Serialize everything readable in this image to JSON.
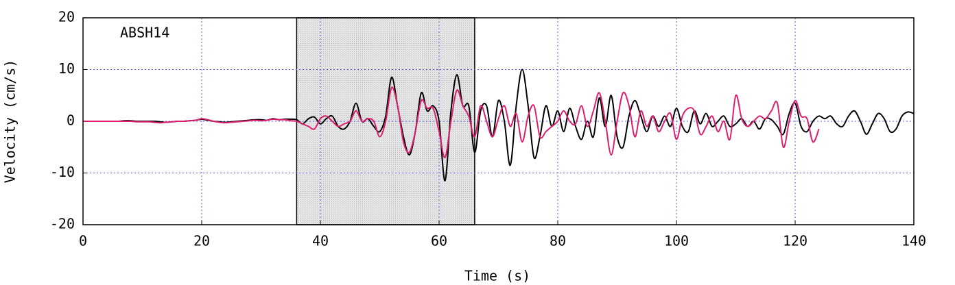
{
  "chart_data": {
    "type": "line",
    "annotation": "ABSH14",
    "xlabel": "Time (s)",
    "ylabel": "Velocity (cm/s)",
    "xlim": [
      0,
      140
    ],
    "ylim": [
      -20,
      20
    ],
    "xticks": [
      0,
      20,
      40,
      60,
      80,
      100,
      120,
      140
    ],
    "yticks": [
      -20,
      -10,
      0,
      10,
      20
    ],
    "grid": true,
    "highlight": [
      36,
      66
    ],
    "highlight_color": "#e4e4e4",
    "x": [
      0,
      1,
      2,
      3,
      4,
      5,
      6,
      7,
      8,
      9,
      10,
      11,
      12,
      13,
      14,
      15,
      16,
      17,
      18,
      19,
      20,
      21,
      22,
      23,
      24,
      25,
      26,
      27,
      28,
      29,
      30,
      31,
      32,
      33,
      34,
      35,
      36,
      37,
      38,
      39,
      40,
      41,
      42,
      43,
      44,
      45,
      46,
      47,
      48,
      49,
      50,
      51,
      52,
      53,
      54,
      55,
      56,
      57,
      58,
      59,
      60,
      61,
      62,
      63,
      64,
      65,
      66,
      67,
      68,
      69,
      70,
      71,
      72,
      73,
      74,
      75,
      76,
      77,
      78,
      79,
      80,
      81,
      82,
      83,
      84,
      85,
      86,
      87,
      88,
      89,
      90,
      91,
      92,
      93,
      94,
      95,
      96,
      97,
      98,
      99,
      100,
      101,
      102,
      103,
      104,
      105,
      106,
      107,
      108,
      109,
      110,
      111,
      112,
      113,
      114,
      115,
      116,
      117,
      118,
      119,
      120,
      121,
      122,
      123,
      124,
      125,
      126,
      127,
      128,
      129,
      130,
      131,
      132,
      133,
      134,
      135,
      136,
      137,
      138,
      139,
      140
    ],
    "series": [
      {
        "color": "#000000",
        "values": [
          0,
          0,
          0,
          0,
          0,
          0,
          0,
          0.1,
          0.1,
          0,
          0,
          0,
          0,
          -0.1,
          -0.2,
          -0.1,
          0,
          0,
          0.1,
          0.2,
          0.4,
          0.2,
          0,
          -0.1,
          -0.2,
          -0.1,
          0,
          0.1,
          0.2,
          0.3,
          0.3,
          0.2,
          0.5,
          0.3,
          0.4,
          0.4,
          0.3,
          -0.5,
          0.5,
          0.8,
          -0.5,
          0.5,
          1,
          -1,
          -1.5,
          0,
          3.5,
          0,
          0.5,
          -1,
          -2,
          1,
          8.5,
          3,
          -3,
          -6.5,
          -2,
          5.5,
          2,
          3,
          0,
          -11.5,
          2,
          9,
          3,
          3,
          -6,
          2,
          3,
          -3,
          4,
          0,
          -8.5,
          3,
          10,
          3,
          -7,
          -3,
          3,
          -1,
          2,
          -2,
          2.5,
          -1,
          -3.5,
          0,
          -3,
          4.5,
          -1,
          5,
          -3,
          -5,
          1,
          4,
          1,
          -2,
          1,
          -1,
          1,
          -1,
          2.5,
          -1,
          -2,
          2,
          -0.5,
          1.5,
          -1,
          0,
          1,
          -1,
          -0.5,
          0.5,
          -1,
          0,
          -1.5,
          0.5,
          0.3,
          -1,
          -2.5,
          1.5,
          3.5,
          -1,
          -2,
          0,
          1,
          0.5,
          1,
          -0.5,
          -1,
          1,
          2,
          0,
          -2.5,
          -0.5,
          1.5,
          0.5,
          -2,
          -1.5,
          1,
          1.8,
          1.5
        ]
      },
      {
        "color": "#dc1e6e",
        "values": [
          0,
          0,
          0,
          0,
          0,
          0,
          0,
          0,
          0,
          -0.1,
          -0.1,
          -0.1,
          -0.2,
          -0.3,
          -0.2,
          -0.1,
          0,
          0,
          0.1,
          0.2,
          0.5,
          0.3,
          0,
          -0.2,
          -0.3,
          -0.2,
          -0.1,
          0,
          0.1,
          0.2,
          0.1,
          0.2,
          0.4,
          0.3,
          0.3,
          0.1,
          0,
          -0.5,
          -1,
          -1.5,
          0.5,
          1,
          0,
          -1,
          -0.5,
          0,
          2,
          0,
          0.5,
          0,
          -3,
          0,
          6.5,
          3,
          -4,
          -6,
          -2,
          4,
          2.5,
          2.5,
          -2,
          -7,
          0,
          6,
          3,
          1,
          -3,
          3,
          0,
          -3,
          0.5,
          3,
          -1,
          1.5,
          -4,
          1,
          3,
          -3,
          -2,
          -1,
          0,
          2,
          0,
          -0.5,
          3,
          -1,
          2,
          5.5,
          0,
          -6.5,
          0,
          5.5,
          3,
          -3,
          2,
          -1,
          1,
          -2,
          0,
          1.5,
          -3.5,
          1,
          2.5,
          2,
          -2.5,
          -1,
          1,
          -2,
          0,
          -3.5,
          5,
          0.5,
          -1,
          0,
          1,
          0.5,
          2,
          3.5,
          -5,
          0,
          4,
          1,
          0.5,
          -4,
          -1.5,
          null,
          null,
          null,
          null,
          null,
          null,
          null,
          null,
          null,
          null,
          null,
          null,
          null,
          null,
          null,
          null
        ]
      }
    ]
  }
}
